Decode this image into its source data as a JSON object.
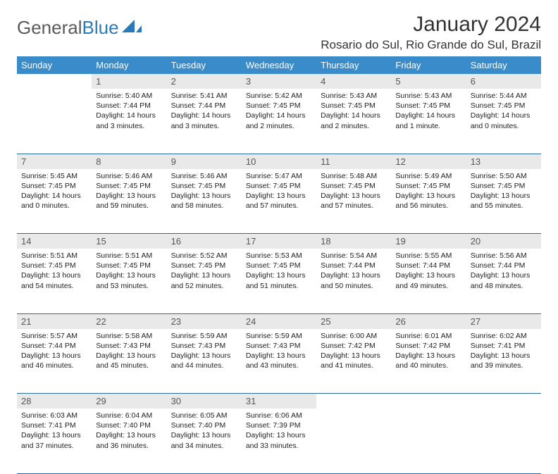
{
  "brand": {
    "part1": "General",
    "part2": "Blue"
  },
  "title": "January 2024",
  "location": "Rosario do Sul, Rio Grande do Sul, Brazil",
  "colors": {
    "header_bg": "#3a8bc9",
    "daynum_bg": "#e9e9e9",
    "row_divider": "#2a6a9e",
    "logo_grey": "#5a5a5a",
    "logo_blue": "#2a7ab8"
  },
  "weekdays": [
    "Sunday",
    "Monday",
    "Tuesday",
    "Wednesday",
    "Thursday",
    "Friday",
    "Saturday"
  ],
  "weeks": [
    [
      null,
      {
        "n": "1",
        "sr": "5:40 AM",
        "ss": "7:44 PM",
        "dl": "14 hours and 3 minutes."
      },
      {
        "n": "2",
        "sr": "5:41 AM",
        "ss": "7:44 PM",
        "dl": "14 hours and 3 minutes."
      },
      {
        "n": "3",
        "sr": "5:42 AM",
        "ss": "7:45 PM",
        "dl": "14 hours and 2 minutes."
      },
      {
        "n": "4",
        "sr": "5:43 AM",
        "ss": "7:45 PM",
        "dl": "14 hours and 2 minutes."
      },
      {
        "n": "5",
        "sr": "5:43 AM",
        "ss": "7:45 PM",
        "dl": "14 hours and 1 minute."
      },
      {
        "n": "6",
        "sr": "5:44 AM",
        "ss": "7:45 PM",
        "dl": "14 hours and 0 minutes."
      }
    ],
    [
      {
        "n": "7",
        "sr": "5:45 AM",
        "ss": "7:45 PM",
        "dl": "14 hours and 0 minutes."
      },
      {
        "n": "8",
        "sr": "5:46 AM",
        "ss": "7:45 PM",
        "dl": "13 hours and 59 minutes."
      },
      {
        "n": "9",
        "sr": "5:46 AM",
        "ss": "7:45 PM",
        "dl": "13 hours and 58 minutes."
      },
      {
        "n": "10",
        "sr": "5:47 AM",
        "ss": "7:45 PM",
        "dl": "13 hours and 57 minutes."
      },
      {
        "n": "11",
        "sr": "5:48 AM",
        "ss": "7:45 PM",
        "dl": "13 hours and 57 minutes."
      },
      {
        "n": "12",
        "sr": "5:49 AM",
        "ss": "7:45 PM",
        "dl": "13 hours and 56 minutes."
      },
      {
        "n": "13",
        "sr": "5:50 AM",
        "ss": "7:45 PM",
        "dl": "13 hours and 55 minutes."
      }
    ],
    [
      {
        "n": "14",
        "sr": "5:51 AM",
        "ss": "7:45 PM",
        "dl": "13 hours and 54 minutes."
      },
      {
        "n": "15",
        "sr": "5:51 AM",
        "ss": "7:45 PM",
        "dl": "13 hours and 53 minutes."
      },
      {
        "n": "16",
        "sr": "5:52 AM",
        "ss": "7:45 PM",
        "dl": "13 hours and 52 minutes."
      },
      {
        "n": "17",
        "sr": "5:53 AM",
        "ss": "7:45 PM",
        "dl": "13 hours and 51 minutes."
      },
      {
        "n": "18",
        "sr": "5:54 AM",
        "ss": "7:44 PM",
        "dl": "13 hours and 50 minutes."
      },
      {
        "n": "19",
        "sr": "5:55 AM",
        "ss": "7:44 PM",
        "dl": "13 hours and 49 minutes."
      },
      {
        "n": "20",
        "sr": "5:56 AM",
        "ss": "7:44 PM",
        "dl": "13 hours and 48 minutes."
      }
    ],
    [
      {
        "n": "21",
        "sr": "5:57 AM",
        "ss": "7:44 PM",
        "dl": "13 hours and 46 minutes."
      },
      {
        "n": "22",
        "sr": "5:58 AM",
        "ss": "7:43 PM",
        "dl": "13 hours and 45 minutes."
      },
      {
        "n": "23",
        "sr": "5:59 AM",
        "ss": "7:43 PM",
        "dl": "13 hours and 44 minutes."
      },
      {
        "n": "24",
        "sr": "5:59 AM",
        "ss": "7:43 PM",
        "dl": "13 hours and 43 minutes."
      },
      {
        "n": "25",
        "sr": "6:00 AM",
        "ss": "7:42 PM",
        "dl": "13 hours and 41 minutes."
      },
      {
        "n": "26",
        "sr": "6:01 AM",
        "ss": "7:42 PM",
        "dl": "13 hours and 40 minutes."
      },
      {
        "n": "27",
        "sr": "6:02 AM",
        "ss": "7:41 PM",
        "dl": "13 hours and 39 minutes."
      }
    ],
    [
      {
        "n": "28",
        "sr": "6:03 AM",
        "ss": "7:41 PM",
        "dl": "13 hours and 37 minutes."
      },
      {
        "n": "29",
        "sr": "6:04 AM",
        "ss": "7:40 PM",
        "dl": "13 hours and 36 minutes."
      },
      {
        "n": "30",
        "sr": "6:05 AM",
        "ss": "7:40 PM",
        "dl": "13 hours and 34 minutes."
      },
      {
        "n": "31",
        "sr": "6:06 AM",
        "ss": "7:39 PM",
        "dl": "13 hours and 33 minutes."
      },
      null,
      null,
      null
    ]
  ],
  "labels": {
    "sunrise": "Sunrise:",
    "sunset": "Sunset:",
    "daylight": "Daylight:"
  }
}
